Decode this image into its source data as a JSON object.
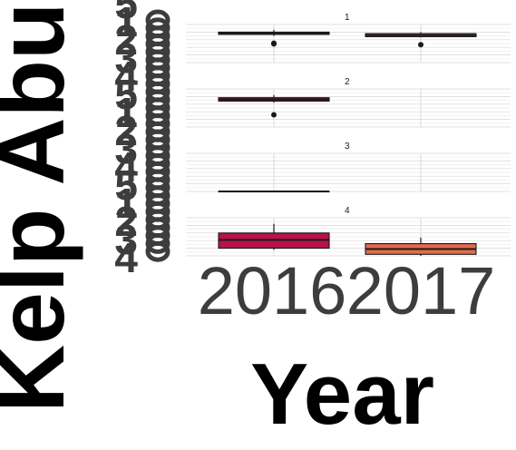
{
  "chart_data": {
    "type": "box",
    "xlabel": "Year",
    "ylabel": "Kelp Abundance",
    "categories": [
      "2016",
      "2017"
    ],
    "colors": {
      "2016": "#8b1a3f",
      "2017": "#e36a4e"
    },
    "panel_2_color_2016": "#6b1638",
    "panel_4_color_2016": "#b8124a",
    "ylim": [
      0,
      5
    ],
    "panels": [
      {
        "label": "1",
        "boxes": [
          {
            "year": "2016",
            "min": 3.5,
            "q1": 3.7,
            "median": 3.85,
            "q3": 4.0,
            "max": 4.3,
            "outliers": [
              2.45,
              2.5,
              2.55
            ]
          },
          {
            "year": "2017",
            "min": 3.3,
            "q1": 3.4,
            "median": 3.6,
            "q3": 3.8,
            "max": 4.0,
            "outliers": [
              2.35
            ]
          }
        ]
      },
      {
        "label": "2",
        "boxes": [
          {
            "year": "2016",
            "min": 3.2,
            "q1": 3.4,
            "median": 3.6,
            "q3": 3.85,
            "max": 4.2,
            "outliers": [
              1.6
            ]
          }
        ]
      },
      {
        "label": "3",
        "boxes": [
          {
            "year": "2016",
            "min": 0.0,
            "q1": 0.0,
            "median": 0.0,
            "q3": 0.0,
            "max": 0.0,
            "outliers": []
          }
        ]
      },
      {
        "label": "4",
        "boxes": [
          {
            "year": "2016",
            "min": 0.8,
            "q1": 1.0,
            "median": 2.1,
            "q3": 3.0,
            "max": 4.2,
            "outliers": []
          },
          {
            "year": "2017",
            "min": 0.0,
            "q1": 0.2,
            "median": 0.9,
            "q3": 1.6,
            "max": 2.4,
            "outliers": []
          }
        ]
      }
    ],
    "tick_labels_overlapping": [
      "4",
      "3",
      "2",
      "1",
      "5",
      "4",
      "3",
      "2",
      "1",
      "5",
      "4",
      "3",
      "2",
      "1",
      "5"
    ]
  }
}
